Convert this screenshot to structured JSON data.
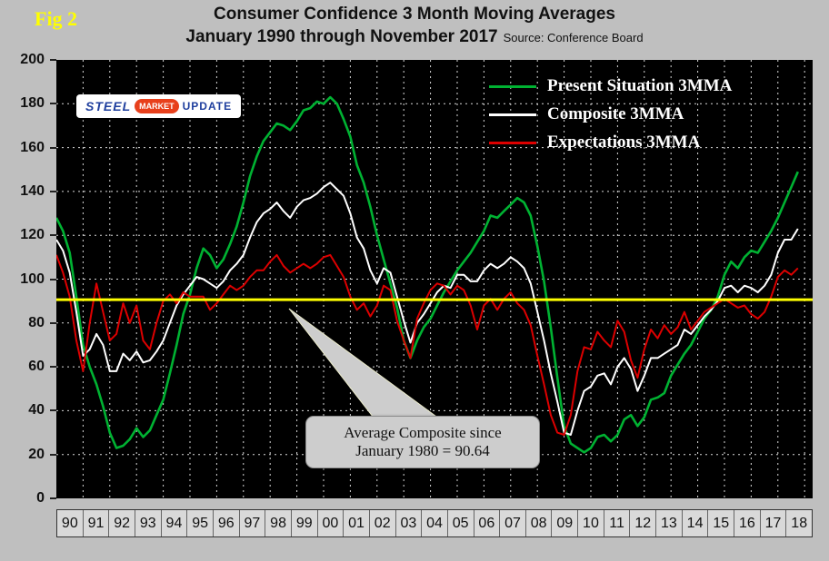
{
  "figure_label": "Fig 2",
  "title": {
    "line1": "Consumer Confidence 3 Month Moving Averages",
    "line2": "January 1990 through November 2017",
    "source": "Source: Conference Board"
  },
  "logo": {
    "steel": "STEEL",
    "market": "MARKET",
    "update": "UPDATE"
  },
  "annotation": {
    "line1": "Average Composite since",
    "line2": "January 1980 = 90.64"
  },
  "colors": {
    "background": "#bfbfbf",
    "plot_bg": "#000000",
    "grid": "#ffffff",
    "reference": "#ffff00",
    "callout_fill": "#cdcdcd"
  },
  "chart_data": {
    "type": "line",
    "title": "Consumer Confidence 3 Month Moving Averages",
    "subtitle": "January 1990 through November 2017",
    "source": "Source: Conference Board",
    "grid": true,
    "legend_position": "top-right-inside",
    "ylim": [
      0,
      200
    ],
    "y_ticks": [
      0,
      20,
      40,
      60,
      80,
      100,
      120,
      140,
      160,
      180,
      200
    ],
    "x_domain": [
      1990,
      2018.3
    ],
    "x_tick_labels": [
      "90",
      "91",
      "92",
      "93",
      "94",
      "95",
      "96",
      "97",
      "98",
      "99",
      "00",
      "01",
      "02",
      "03",
      "04",
      "05",
      "06",
      "07",
      "08",
      "09",
      "10",
      "11",
      "12",
      "13",
      "14",
      "15",
      "16",
      "17",
      "18"
    ],
    "x_unit": "year",
    "x_start": 1990.0,
    "x_step": 0.25,
    "reference_line": {
      "value": 90.64,
      "color": "#ffff00",
      "label": "Average Composite since January 1980 = 90.64"
    },
    "series": [
      {
        "name": "Present Situation 3MMA",
        "color": "#00b232",
        "values": [
          128,
          122,
          112,
          92,
          70,
          60,
          52,
          42,
          30,
          23,
          24,
          27,
          32,
          28,
          31,
          38,
          45,
          57,
          70,
          84,
          93,
          105,
          114,
          111,
          105,
          109,
          116,
          124,
          135,
          147,
          156,
          163,
          167,
          171,
          170,
          168,
          172,
          177,
          178,
          181,
          180,
          183,
          180,
          173,
          165,
          152,
          144,
          133,
          120,
          109,
          98,
          87,
          72,
          64,
          72,
          78,
          82,
          88,
          94,
          99,
          104,
          108,
          112,
          117,
          122,
          129,
          128,
          131,
          134,
          137,
          135,
          129,
          115,
          99,
          78,
          55,
          33,
          25,
          23,
          21,
          23,
          28,
          29,
          26,
          29,
          36,
          38,
          33,
          37,
          45,
          46,
          48,
          56,
          61,
          66,
          70,
          76,
          82,
          86,
          92,
          102,
          108,
          105,
          110,
          113,
          112,
          117,
          122,
          128,
          135,
          142,
          149
        ]
      },
      {
        "name": "Composite 3MMA",
        "color": "#ffffff",
        "values": [
          118,
          113,
          103,
          85,
          65,
          68,
          75,
          70,
          58,
          58,
          66,
          63,
          67,
          62,
          63,
          67,
          72,
          80,
          88,
          93,
          97,
          101,
          100,
          98,
          96,
          99,
          104,
          107,
          111,
          119,
          126,
          130,
          132,
          135,
          131,
          128,
          133,
          136,
          137,
          139,
          142,
          144,
          141,
          138,
          130,
          119,
          114,
          104,
          98,
          105,
          103,
          92,
          81,
          71,
          80,
          84,
          89,
          94,
          97,
          96,
          102,
          102,
          99,
          99,
          104,
          107,
          105,
          107,
          110,
          108,
          105,
          98,
          85,
          72,
          57,
          44,
          30,
          29,
          40,
          49,
          51,
          56,
          57,
          52,
          60,
          64,
          59,
          49,
          56,
          64,
          64,
          66,
          68,
          70,
          77,
          75,
          79,
          83,
          86,
          90,
          96,
          97,
          94,
          97,
          96,
          94,
          97,
          102,
          112,
          118,
          118,
          123
        ]
      },
      {
        "name": "Expectations 3MMA",
        "color": "#dd0000",
        "values": [
          111,
          103,
          92,
          72,
          58,
          80,
          98,
          85,
          72,
          75,
          89,
          80,
          88,
          72,
          68,
          80,
          90,
          93,
          89,
          94,
          92,
          92,
          92,
          86,
          89,
          93,
          97,
          95,
          97,
          101,
          104,
          104,
          108,
          111,
          106,
          103,
          105,
          107,
          105,
          107,
          110,
          111,
          106,
          101,
          92,
          86,
          89,
          83,
          88,
          97,
          95,
          81,
          72,
          64,
          82,
          89,
          95,
          98,
          97,
          93,
          97,
          95,
          88,
          77,
          88,
          91,
          86,
          91,
          94,
          89,
          86,
          79,
          65,
          52,
          38,
          30,
          29,
          38,
          58,
          69,
          68,
          76,
          72,
          69,
          81,
          76,
          63,
          55,
          68,
          77,
          73,
          79,
          75,
          78,
          85,
          77,
          81,
          85,
          87,
          89,
          91,
          89,
          87,
          88,
          84,
          82,
          85,
          92,
          101,
          104,
          102,
          105
        ]
      }
    ]
  }
}
